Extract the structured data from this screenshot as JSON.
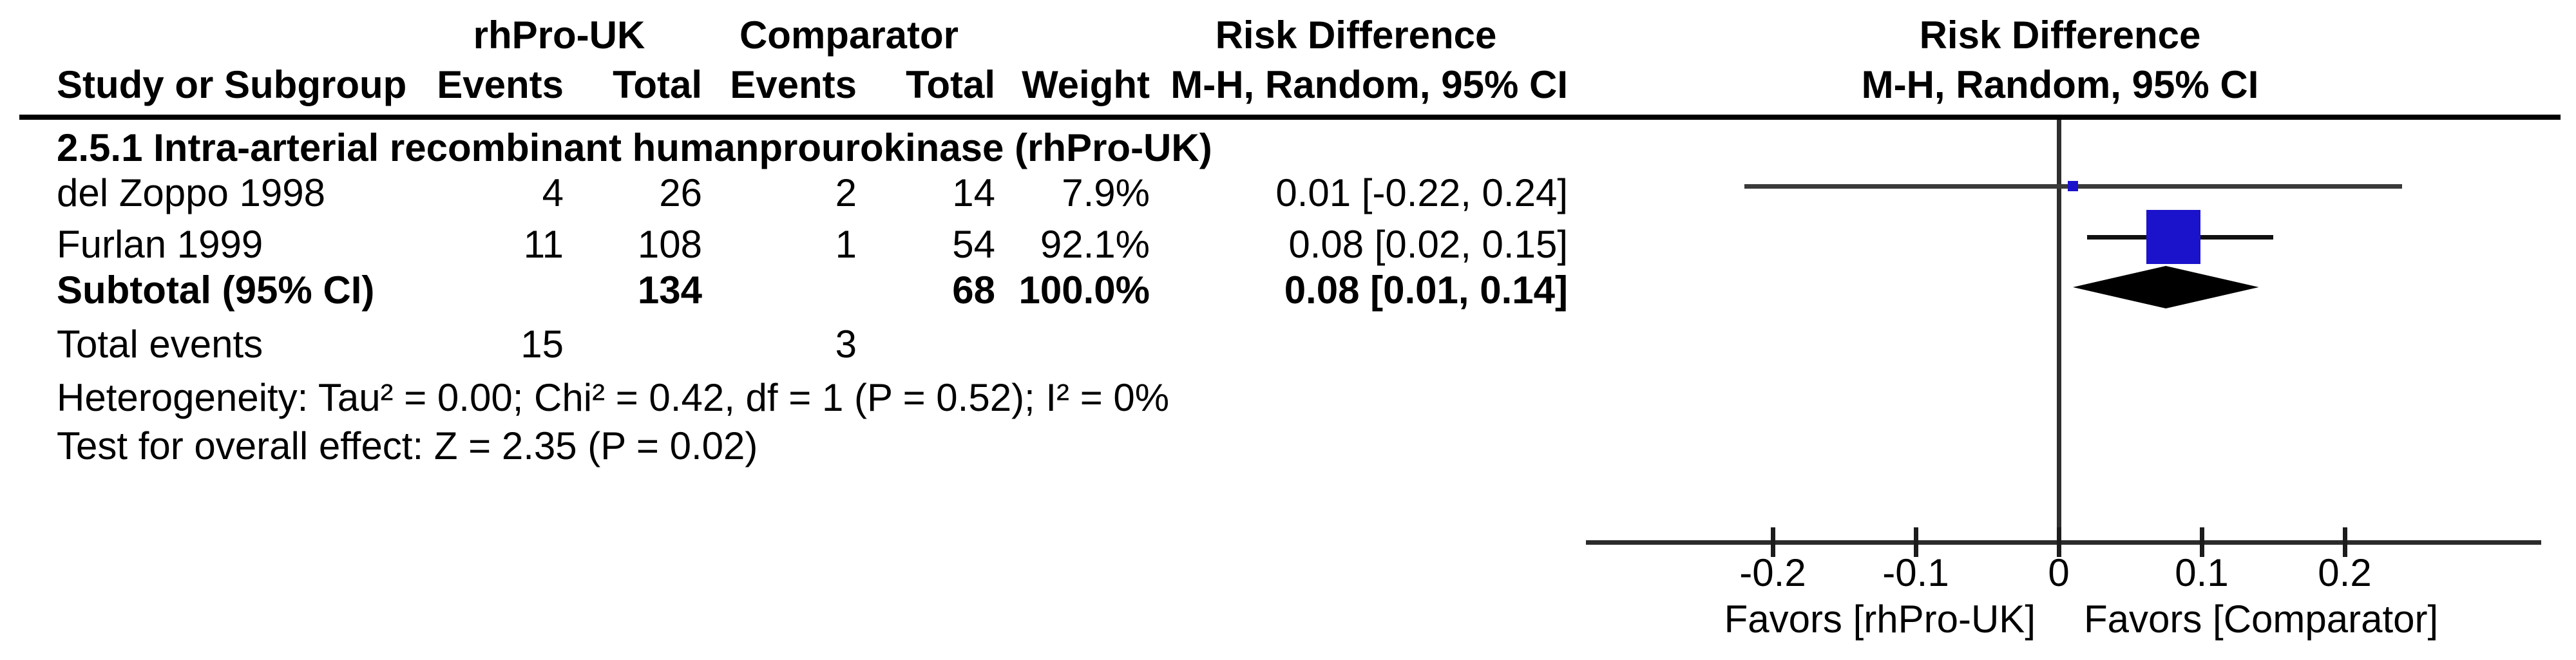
{
  "header": {
    "treatment_group": "rhPro-UK",
    "comparator_group": "Comparator",
    "effect_col_line1": "Risk Difference",
    "effect_col_line2": "M-H, Random, 95% CI",
    "plot_col_line1": "Risk Difference",
    "plot_col_line2": "M-H, Random, 95% CI",
    "study_col": "Study or Subgroup",
    "events_col": "Events",
    "total_col": "Total",
    "weight_col": "Weight"
  },
  "subgroup_title": "2.5.1 Intra-arterial recombinant humanprourokinase (rhPro-UK)",
  "rows": [
    {
      "study": "del Zoppo 1998",
      "events1": "4",
      "total1": "26",
      "events2": "2",
      "total2": "14",
      "weight": "7.9%",
      "ci": "0.01 [-0.22, 0.24]"
    },
    {
      "study": "Furlan 1999",
      "events1": "11",
      "total1": "108",
      "events2": "1",
      "total2": "54",
      "weight": "92.1%",
      "ci": "0.08 [0.02, 0.15]"
    }
  ],
  "subtotal": {
    "label": "Subtotal (95% CI)",
    "total1": "134",
    "total2": "68",
    "weight": "100.0%",
    "ci": "0.08 [0.01, 0.14]"
  },
  "total_events": {
    "label": "Total events",
    "events1": "15",
    "events2": "3"
  },
  "footnotes": {
    "heterogeneity": "Heterogeneity: Tau² = 0.00; Chi² = 0.42, df = 1 (P = 0.52); I² = 0%",
    "overall": "Test for overall effect: Z = 2.35 (P = 0.02)"
  },
  "axis": {
    "tick_labels": [
      "-0.2",
      "-0.1",
      "0",
      "0.1",
      "0.2"
    ],
    "favors_left": "Favors [rhPro-UK]",
    "favors_right": "Favors [Comparator]"
  },
  "chart_data": {
    "type": "forest",
    "effect_measure": "Risk Difference",
    "model": "M-H, Random, 95% CI",
    "subgroup": "2.5.1 Intra-arterial recombinant humanprourokinase (rhPro-UK)",
    "studies": [
      {
        "name": "del Zoppo 1998",
        "events_trt": 4,
        "total_trt": 26,
        "events_ctrl": 2,
        "total_ctrl": 14,
        "weight_pct": 7.9,
        "estimate": 0.01,
        "ci_low": -0.22,
        "ci_high": 0.24
      },
      {
        "name": "Furlan 1999",
        "events_trt": 11,
        "total_trt": 108,
        "events_ctrl": 1,
        "total_ctrl": 54,
        "weight_pct": 92.1,
        "estimate": 0.08,
        "ci_low": 0.02,
        "ci_high": 0.15
      }
    ],
    "subtotal": {
      "total_trt": 134,
      "total_ctrl": 68,
      "weight_pct": 100.0,
      "estimate": 0.08,
      "ci_low": 0.01,
      "ci_high": 0.14
    },
    "total_events": {
      "trt": 15,
      "ctrl": 3
    },
    "heterogeneity": "Tau² = 0.00; Chi² = 0.42, df = 1 (P = 0.52); I² = 0%",
    "overall_effect": "Z = 2.35 (P = 0.02)",
    "x_axis": {
      "ticks": [
        -0.2,
        -0.1,
        0,
        0.1,
        0.2
      ],
      "drawn_range": [
        -0.33,
        0.34
      ],
      "label_left": "Favors [rhPro-UK]",
      "label_right": "Favors [Comparator]"
    },
    "colors": {
      "marker": "#1b12cb",
      "diamond": "#000000"
    }
  }
}
